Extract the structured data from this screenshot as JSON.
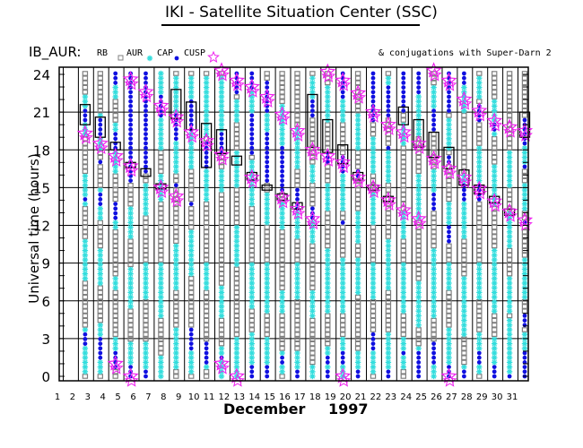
{
  "chart_data": {
    "type": "scatter",
    "title": "IKI - Satellite Situation Center (SSC)",
    "satellite_label": "IB_AUR:",
    "legend": [
      {
        "name": "RB",
        "marker": "square",
        "color": "#808080"
      },
      {
        "name": "AUR",
        "marker": "asterisk",
        "color": "#33dddd"
      },
      {
        "name": "CAP",
        "marker": "dot",
        "color": "#1010e0"
      },
      {
        "name": "CUSP",
        "marker": "star",
        "color": "#ee22ee"
      }
    ],
    "annotation": "& conjugations with Super-Darn 2",
    "xlabel_month": "December",
    "xlabel_year": "1997",
    "ylabel": "Universal time (hours)",
    "x_ticks": [
      1,
      2,
      3,
      4,
      5,
      6,
      7,
      8,
      9,
      10,
      11,
      12,
      13,
      14,
      15,
      16,
      17,
      18,
      19,
      20,
      21,
      22,
      23,
      24,
      25,
      26,
      27,
      28,
      29,
      30,
      31
    ],
    "y_ticks": [
      0,
      3,
      6,
      9,
      12,
      15,
      18,
      21,
      24
    ],
    "xlim": [
      1,
      32
    ],
    "ylim": [
      0,
      24.5
    ],
    "grid": true,
    "days": [
      {
        "day": 2,
        "aur": [
          [
            0.3,
            1.5
          ],
          [
            1.8,
            4
          ],
          [
            7.7,
            10.8
          ],
          [
            13.5,
            16
          ],
          [
            19,
            22.5
          ]
        ],
        "cap": [
          [
            2.5,
            3.6
          ],
          [
            13.8,
            14.4
          ],
          [
            20,
            21.3
          ]
        ],
        "cusp": [
          19.3
        ],
        "box": [
          20,
          21.6
        ]
      },
      {
        "day": 3,
        "aur": [
          [
            0.3,
            1.7
          ],
          [
            2.5,
            4.3
          ],
          [
            7.2,
            10.2
          ],
          [
            12.4,
            15
          ],
          [
            18,
            21
          ]
        ],
        "cap": [
          [
            1.4,
            3
          ],
          [
            13.5,
            14.5
          ],
          [
            17,
            17.2
          ],
          [
            19,
            20.6
          ]
        ],
        "cusp": [
          18.5
        ],
        "box": [
          19,
          20.6
        ]
      },
      {
        "day": 4,
        "aur": [
          [
            0.4,
            3
          ],
          [
            6.8,
            8
          ],
          [
            11.8,
            13.5
          ],
          [
            16,
            20
          ],
          [
            22,
            24
          ]
        ],
        "cap": [
          [
            0.6,
            2.2
          ],
          [
            12.5,
            14
          ],
          [
            18,
            19.6
          ],
          [
            23,
            24.3
          ]
        ],
        "cusp": [
          17.5,
          1
        ],
        "box": [
          18,
          18.6
        ]
      },
      {
        "day": 5,
        "aur": [
          [
            0.6,
            2.6
          ],
          [
            5.5,
            8.6
          ],
          [
            11,
            13.4
          ],
          [
            15.4,
            17
          ],
          [
            22,
            24
          ]
        ],
        "cap": [
          [
            0,
            0.8
          ],
          [
            15.4,
            24.3
          ]
        ],
        "cusp": [
          23.6,
          0,
          16.7
        ],
        "box": [
          16.6,
          17
        ]
      },
      {
        "day": 6,
        "aur": [
          [
            0.5,
            2.8
          ],
          [
            6,
            9
          ],
          [
            12.8,
            15.2
          ],
          [
            20,
            22
          ]
        ],
        "cap": [
          [
            0,
            0.6
          ],
          [
            16,
            24.3
          ]
        ],
        "cusp": [
          22.6
        ],
        "box": [
          15.9,
          16.5
        ]
      },
      {
        "day": 7,
        "aur": [
          [
            0,
            1.5
          ],
          [
            4.5,
            9
          ],
          [
            14,
            16
          ],
          [
            18,
            24.3
          ]
        ],
        "cap": [
          [
            20.6,
            22.5
          ]
        ],
        "cusp": [
          21.5,
          15
        ],
        "box": [
          14.9,
          15.3
        ]
      },
      {
        "day": 8,
        "aur": [
          [
            0.5,
            4
          ],
          [
            7,
            10.5
          ],
          [
            16,
            19
          ],
          [
            21,
            24
          ]
        ],
        "cap": [
          [
            15,
            15.2
          ],
          [
            18.8,
            21
          ]
        ],
        "cusp": [
          20.6,
          14.3
        ],
        "box": [
          20.5,
          22.8
        ]
      },
      {
        "day": 9,
        "aur": [
          [
            0.3,
            3
          ],
          [
            7.8,
            11.5
          ],
          [
            16.5,
            19.5
          ],
          [
            22,
            24
          ]
        ],
        "cap": [
          [
            2,
            4
          ],
          [
            13.5,
            13.8
          ],
          [
            19.6,
            22
          ]
        ],
        "cusp": [
          19.4
        ],
        "box": [
          19.6,
          21.8
        ]
      },
      {
        "day": 10,
        "aur": [
          [
            0.6,
            2.6
          ],
          [
            7,
            9
          ],
          [
            14,
            17
          ],
          [
            19,
            24
          ]
        ],
        "cap": [
          [
            1,
            2.6
          ],
          [
            16.5,
            18.7
          ]
        ],
        "cusp": [
          18.7
        ],
        "box": [
          16.6,
          20.1
        ]
      },
      {
        "day": 11,
        "aur": [
          [
            0,
            2.3
          ],
          [
            4.5,
            7.2
          ],
          [
            14.5,
            16.4
          ],
          [
            19,
            22.3
          ],
          [
            22.5,
            24
          ]
        ],
        "cap": [
          [
            17.5,
            19.5
          ],
          [
            1.2,
            1.8
          ]
        ],
        "cusp": [
          24.3,
          17.6,
          1
        ],
        "box": [
          17.7,
          19.6
        ]
      },
      {
        "day": 12,
        "aur": [
          [
            0,
            3
          ],
          [
            8.8,
            12
          ],
          [
            15,
            18
          ],
          [
            20,
            22
          ]
        ],
        "cap": [
          [
            22.5,
            24.3
          ]
        ],
        "cusp": [
          23.5,
          0
        ],
        "box": [
          16.8,
          17.5
        ]
      },
      {
        "day": 13,
        "aur": [
          [
            0.5,
            3.5
          ],
          [
            5.5,
            9
          ],
          [
            13.7,
            17.1
          ],
          [
            20,
            22.6
          ]
        ],
        "cap": [
          [
            0,
            1
          ],
          [
            17.5,
            21
          ],
          [
            22.6,
            24.3
          ]
        ],
        "cusp": [
          23,
          15.8
        ],
        "box": [
          15.6,
          16.2
        ]
      },
      {
        "day": 14,
        "aur": [
          [
            0.3,
            3
          ],
          [
            5,
            9
          ],
          [
            12,
            14.7
          ],
          [
            17.5,
            21
          ]
        ],
        "cap": [
          [
            0,
            1
          ],
          [
            15.3,
            19.5
          ],
          [
            21,
            23.4
          ]
        ],
        "cusp": [
          22.2
        ],
        "box": [
          14.8,
          15.2
        ]
      },
      {
        "day": 15,
        "aur": [
          [
            0.2,
            2
          ],
          [
            5,
            7
          ],
          [
            11.8,
            14
          ],
          [
            18,
            21.6
          ]
        ],
        "cap": [
          [
            1,
            1.5
          ],
          [
            14.5,
            18.3
          ]
        ],
        "cusp": [
          20.8,
          14.2
        ],
        "box": [
          14,
          14.5
        ]
      },
      {
        "day": 16,
        "aur": [
          [
            0,
            2
          ],
          [
            6.2,
            9
          ],
          [
            11,
            14
          ],
          [
            16.5,
            19.8
          ]
        ],
        "cap": [
          [
            0,
            0.5
          ],
          [
            13,
            15
          ]
        ],
        "cusp": [
          19.5,
          13.3
        ],
        "box": [
          13.3,
          13.8
        ]
      },
      {
        "day": 17,
        "aur": [
          [
            0,
            1
          ],
          [
            4.5,
            7
          ],
          [
            10.5,
            12.5
          ],
          [
            15.5,
            17
          ],
          [
            21,
            24
          ]
        ],
        "cap": [
          [
            12.5,
            13.5
          ],
          [
            20.4,
            22
          ]
        ],
        "cusp": [
          18,
          12.5
        ],
        "box": [
          18.2,
          22.4
        ]
      },
      {
        "day": 18,
        "aur": [
          [
            0.5,
            2.5
          ],
          [
            5,
            10
          ],
          [
            13,
            15.5
          ],
          [
            20,
            23
          ]
        ],
        "cap": [
          [
            0,
            0.5
          ],
          [
            1,
            1.6
          ],
          [
            12.3,
            12.5
          ],
          [
            16.7,
            17.9
          ]
        ],
        "cusp": [
          24.2,
          17.5
        ],
        "box": [
          17.8,
          20.4
        ]
      },
      {
        "day": 19,
        "aur": [
          [
            0,
            3
          ],
          [
            5,
            9.5
          ],
          [
            13,
            16
          ],
          [
            20,
            22.5
          ]
        ],
        "cap": [
          [
            1,
            2
          ],
          [
            12.2,
            12.4
          ],
          [
            16,
            17.7
          ],
          [
            22,
            24.3
          ]
        ],
        "cusp": [
          23.5,
          0,
          17
        ],
        "box": [
          16.9,
          18.4
        ]
      },
      {
        "day": 20,
        "aur": [
          [
            0,
            2
          ],
          [
            6.5,
            9.5
          ],
          [
            10.5,
            13
          ],
          [
            18,
            21
          ]
        ],
        "cap": [
          [
            0,
            0.5
          ],
          [
            15.8,
            16.5
          ]
        ],
        "cusp": [
          22.5,
          15.8
        ],
        "box": [
          15.6,
          16.2
        ]
      },
      {
        "day": 21,
        "aur": [
          [
            0.3,
            2
          ],
          [
            6,
            9
          ],
          [
            12,
            14.5
          ],
          [
            16,
            19
          ],
          [
            22,
            24
          ]
        ],
        "cap": [
          [
            2,
            3.5
          ],
          [
            20,
            24.3
          ]
        ],
        "cusp": [
          21,
          15
        ],
        "box": [
          14.8,
          15.2
        ]
      },
      {
        "day": 22,
        "aur": [
          [
            0.3,
            3.5
          ],
          [
            7,
            11
          ],
          [
            15.5,
            18
          ],
          [
            21.5,
            24
          ]
        ],
        "cap": [
          [
            0,
            0.5
          ],
          [
            18,
            18.5
          ],
          [
            20.5,
            23
          ]
        ],
        "cusp": [
          20,
          14
        ],
        "box": [
          13.9,
          14.3
        ]
      },
      {
        "day": 23,
        "aur": [
          [
            0.5,
            3
          ],
          [
            5,
            9
          ],
          [
            11,
            13
          ],
          [
            18.5,
            20
          ]
        ],
        "cap": [
          [
            1.8,
            2.2
          ],
          [
            21,
            24.3
          ]
        ],
        "cusp": [
          19.4,
          13.2
        ],
        "box": [
          20,
          21.4
        ]
      },
      {
        "day": 24,
        "aur": [
          [
            0,
            2.5
          ],
          [
            4,
            7.5
          ],
          [
            12.5,
            16
          ],
          [
            19,
            22.5
          ]
        ],
        "cap": [
          [
            0,
            2
          ],
          [
            22.5,
            24.3
          ]
        ],
        "cusp": [
          18.5,
          12.5
        ],
        "box": [
          18.2,
          20.4
        ]
      },
      {
        "day": 25,
        "aur": [
          [
            0,
            0.8
          ],
          [
            4.5,
            10
          ],
          [
            14,
            16.5
          ],
          [
            20,
            23.2
          ]
        ],
        "cap": [
          [
            1,
            2.6
          ],
          [
            13,
            14.5
          ],
          [
            19.5,
            21.2
          ]
        ],
        "cusp": [
          24.3,
          17.3
        ],
        "box": [
          17.4,
          19.4
        ]
      },
      {
        "day": 26,
        "aur": [
          [
            0,
            4
          ],
          [
            7,
            9
          ],
          [
            12,
            14
          ],
          [
            18,
            20.5
          ]
        ],
        "cap": [
          [
            0,
            1
          ],
          [
            10.5,
            12
          ],
          [
            17,
            17.5
          ],
          [
            21,
            24.3
          ]
        ],
        "cusp": [
          23.5,
          16.5,
          0
        ],
        "box": [
          16.5,
          18.2
        ]
      },
      {
        "day": 27,
        "aur": [
          [
            0,
            1
          ],
          [
            3,
            8
          ],
          [
            11,
            16
          ],
          [
            21,
            24
          ]
        ],
        "cap": [
          [
            0,
            0.5
          ],
          [
            14,
            15.5
          ],
          [
            23,
            24.3
          ]
        ],
        "cusp": [
          22,
          15.8
        ],
        "box": [
          15.2,
          16.4
        ]
      },
      {
        "day": 28,
        "aur": [
          [
            0.2,
            3.4
          ],
          [
            6,
            9
          ],
          [
            14.5,
            18.5
          ],
          [
            22,
            24
          ]
        ],
        "cap": [
          [
            1,
            2
          ],
          [
            14,
            15.2
          ],
          [
            20,
            21.5
          ]
        ],
        "cusp": [
          21.1,
          14.9
        ],
        "box": [
          14.5,
          15.2
        ]
      },
      {
        "day": 29,
        "aur": [
          [
            0.4,
            3
          ],
          [
            5,
            10
          ],
          [
            13.5,
            17
          ],
          [
            19,
            22
          ]
        ],
        "cap": [
          [
            0,
            1
          ],
          [
            19.4,
            20.2
          ]
        ],
        "cusp": [
          20.3,
          13.9
        ],
        "box": [
          13.8,
          14.3
        ]
      },
      {
        "day": 30,
        "aur": [
          [
            0,
            4.5
          ],
          [
            5,
            8
          ],
          [
            10,
            13
          ],
          [
            15,
            17.8
          ]
        ],
        "cap": [
          [
            0,
            0.3
          ]
        ],
        "cusp": [
          19.8,
          13.1
        ],
        "box": [
          12.8,
          13.3
        ]
      },
      {
        "day": 31,
        "aur": [
          [
            0.5,
            3.5
          ],
          [
            6,
            9.5
          ],
          [
            13,
            15.5
          ],
          [
            17,
            18.5
          ]
        ],
        "cap": [
          [
            0,
            2
          ],
          [
            4,
            5
          ],
          [
            16.5,
            16.8
          ],
          [
            18.5,
            20
          ],
          [
            12,
            12.3
          ],
          [
            19.8,
            20.4
          ]
        ],
        "cusp": [
          19.5,
          12.4
        ],
        "box": [
          19,
          21
        ]
      }
    ]
  }
}
